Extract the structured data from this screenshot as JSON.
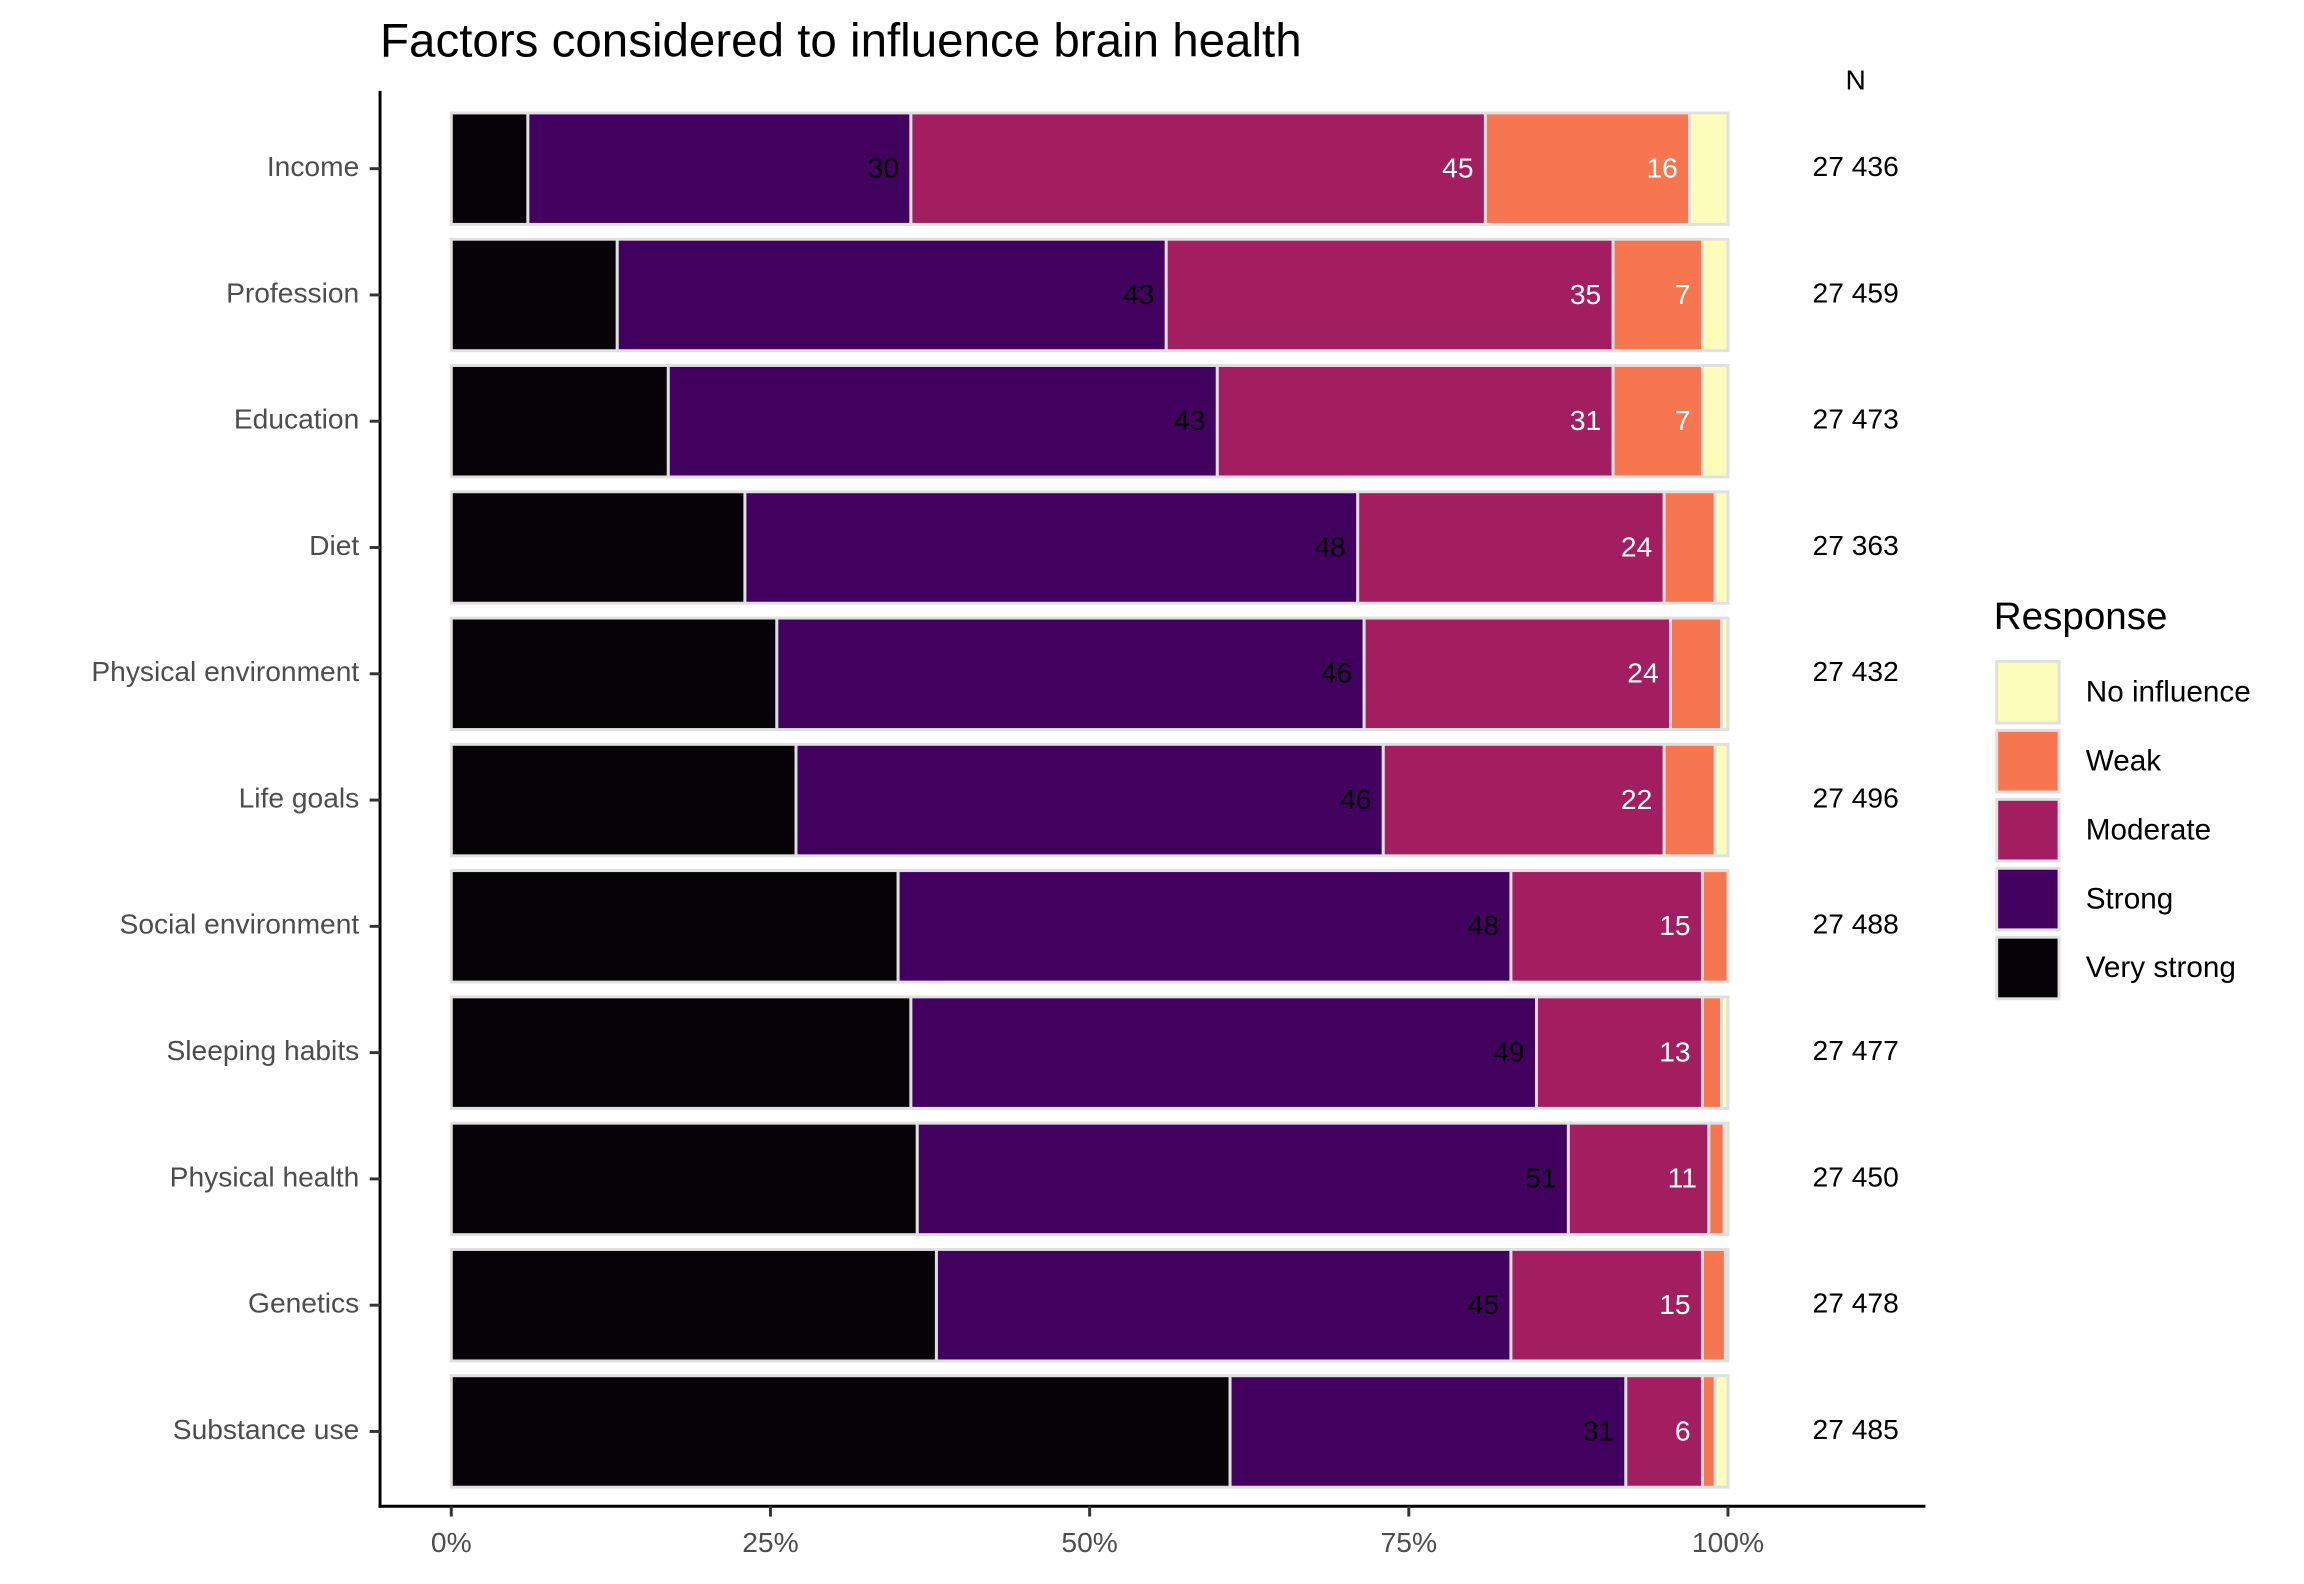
{
  "chart_data": {
    "type": "stacked-bar-horizontal",
    "title": "Factors considered to influence brain health",
    "categories": [
      "Income",
      "Profession",
      "Education",
      "Diet",
      "Physical environment",
      "Life goals",
      "Social environment",
      "Sleeping habits",
      "Physical health",
      "Genetics",
      "Substance use"
    ],
    "series": [
      {
        "name": "Very strong",
        "color": "#050308",
        "data_labels": false,
        "label_color": "#000000",
        "values": [
          6,
          13,
          17,
          23,
          25.5,
          27,
          35,
          36,
          36.5,
          38,
          61
        ]
      },
      {
        "name": "Strong",
        "color": "#42005f",
        "data_labels": true,
        "label_color": "#000000",
        "values": [
          30,
          43,
          43,
          48,
          46,
          46,
          48,
          49,
          51,
          45,
          31
        ]
      },
      {
        "name": "Moderate",
        "color": "#a31e61",
        "data_labels": true,
        "label_color": "#ffffff",
        "values": [
          45,
          35,
          31,
          24,
          24,
          22,
          15,
          13,
          11,
          15,
          6
        ]
      },
      {
        "name": "Weak",
        "color": "#f6774f",
        "data_labels": true,
        "label_color": "#ffffff",
        "values": [
          16,
          7,
          7,
          4,
          4,
          4,
          2,
          1.5,
          1.2,
          1.8,
          1
        ]
      },
      {
        "name": "No influence",
        "color": "#fcfdbb",
        "data_labels": true,
        "label_color": "#000000",
        "values": [
          3,
          2,
          2,
          1,
          0.5,
          1,
          0,
          0.5,
          0.3,
          0.2,
          1
        ]
      }
    ],
    "label_min": 5,
    "xlim": [
      -5.58,
      115.35
    ],
    "xticks": [
      {
        "value": 0,
        "label": "0%"
      },
      {
        "value": 25,
        "label": "25%"
      },
      {
        "value": 50,
        "label": "50%"
      },
      {
        "value": 75,
        "label": "75%"
      },
      {
        "value": 100,
        "label": "100%"
      }
    ],
    "n_title": "N",
    "n_labels": [
      "27 436",
      "27 459",
      "27 473",
      "27 363",
      "27 432",
      "27 496",
      "27 488",
      "27 477",
      "27 450",
      "27 478",
      "27 485"
    ],
    "legend_title": "Response",
    "legend_reverse": true
  }
}
